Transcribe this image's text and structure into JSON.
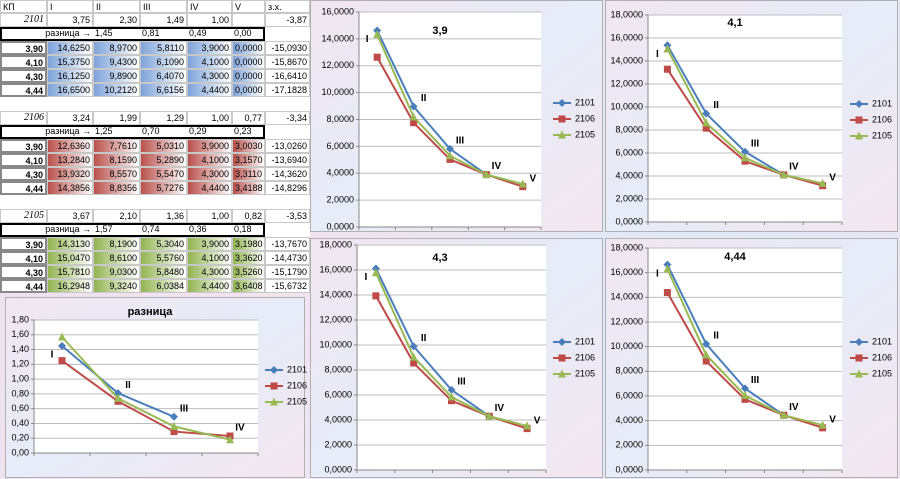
{
  "table": {
    "header": [
      "КП",
      "I",
      "II",
      "III",
      "IV",
      "V",
      "з.х."
    ],
    "blocks": [
      {
        "rows": [
          [
            "2101",
            "3,75",
            "2,30",
            "1,49",
            "1,00",
            null,
            "-3,87"
          ],
          [
            "разница →",
            "1,45",
            "0,81",
            "0,49",
            "0,00"
          ],
          [
            "3,90",
            "14,6250",
            "8,9700",
            "5,8110",
            "3,9000",
            "0,0000",
            "-15,0930"
          ],
          [
            "4,10",
            "15,3750",
            "9,4300",
            "6,1090",
            "4,1000",
            "0,0000",
            "-15,8670"
          ],
          [
            "4,30",
            "16,1250",
            "9,8900",
            "6,4070",
            "4,3000",
            "0,0000",
            "-16,6410"
          ],
          [
            "4,44",
            "16,6500",
            "10,2120",
            "6,6156",
            "4,4400",
            "0,0000",
            "-17,1828"
          ]
        ]
      },
      {
        "rows": [
          [
            "2106",
            "3,24",
            "1,99",
            "1,29",
            "1,00",
            "0,77",
            "-3,34"
          ],
          [
            "разница →",
            "1,25",
            "0,70",
            "0,29",
            "0,23"
          ],
          [
            "3,90",
            "12,6360",
            "7,7610",
            "5,0310",
            "3,9000",
            "3,0030",
            "-13,0260"
          ],
          [
            "4,10",
            "13,2840",
            "8,1590",
            "5,2890",
            "4,1000",
            "3,1570",
            "-13,6940"
          ],
          [
            "4,30",
            "13,9320",
            "8,5570",
            "5,5470",
            "4,3000",
            "3,3110",
            "-14,3620"
          ],
          [
            "4,44",
            "14,3856",
            "8,8356",
            "5,7276",
            "4,4400",
            "3,4188",
            "-14,8296"
          ]
        ]
      },
      {
        "rows": [
          [
            "2105",
            "3,67",
            "2,10",
            "1,36",
            "1,00",
            "0,82",
            "-3,53"
          ],
          [
            "разница →",
            "1,57",
            "0,74",
            "0,36",
            "0,18"
          ],
          [
            "3,90",
            "14,3130",
            "8,1900",
            "5,3040",
            "3,9000",
            "3,1980",
            "-13,7670"
          ],
          [
            "4,10",
            "15,0470",
            "8,6100",
            "5,5760",
            "4,1000",
            "3,3620",
            "-14,4730"
          ],
          [
            "4,30",
            "15,7810",
            "9,0300",
            "5,8480",
            "4,3000",
            "3,5260",
            "-15,1790"
          ],
          [
            "4,44",
            "16,2948",
            "9,3240",
            "6,0384",
            "4,4400",
            "3,6408",
            "-15,6732"
          ]
        ]
      }
    ]
  },
  "chart_data": [
    {
      "type": "line",
      "title": "3,9",
      "categories": [
        "I",
        "II",
        "III",
        "IV",
        "V"
      ],
      "series": [
        {
          "name": "2101",
          "color": "#4a7ebb",
          "marker": "diamond",
          "values": [
            14.625,
            8.97,
            5.811,
            3.9,
            null
          ]
        },
        {
          "name": "2106",
          "color": "#be4b48",
          "marker": "square",
          "values": [
            12.636,
            7.761,
            5.031,
            3.9,
            3.003
          ]
        },
        {
          "name": "2105",
          "color": "#98b954",
          "marker": "triangle",
          "values": [
            14.313,
            8.19,
            5.304,
            3.9,
            3.198
          ]
        }
      ],
      "ylim": [
        0,
        16
      ],
      "yticks": [
        {
          "value": 0,
          "label": "0,0000"
        },
        {
          "value": 2,
          "label": "2,0000"
        },
        {
          "value": 4,
          "label": "4,0000"
        },
        {
          "value": 6,
          "label": "6,0000"
        },
        {
          "value": 8,
          "label": "8,0000"
        },
        {
          "value": 10,
          "label": "10,0000"
        },
        {
          "value": 12,
          "label": "12,0000"
        },
        {
          "value": 14,
          "label": "14,0000"
        },
        {
          "value": 16,
          "label": "16,0000"
        }
      ],
      "grid": true,
      "legend": "right"
    },
    {
      "type": "line",
      "title": "4,1",
      "categories": [
        "I",
        "II",
        "III",
        "IV",
        "V"
      ],
      "series": [
        {
          "name": "2101",
          "color": "#4a7ebb",
          "marker": "diamond",
          "values": [
            15.375,
            9.43,
            6.109,
            4.1,
            null
          ]
        },
        {
          "name": "2106",
          "color": "#be4b48",
          "marker": "square",
          "values": [
            13.284,
            8.159,
            5.289,
            4.1,
            3.157
          ]
        },
        {
          "name": "2105",
          "color": "#98b954",
          "marker": "triangle",
          "values": [
            15.047,
            8.61,
            5.576,
            4.1,
            3.362
          ]
        }
      ],
      "ylim": [
        0,
        18
      ],
      "yticks": [
        {
          "value": 0,
          "label": "0,0000"
        },
        {
          "value": 2,
          "label": "2,0000"
        },
        {
          "value": 4,
          "label": "4,0000"
        },
        {
          "value": 6,
          "label": "6,0000"
        },
        {
          "value": 8,
          "label": "8,0000"
        },
        {
          "value": 10,
          "label": "10,0000"
        },
        {
          "value": 12,
          "label": "12,0000"
        },
        {
          "value": 14,
          "label": "14,0000"
        },
        {
          "value": 16,
          "label": "16,0000"
        },
        {
          "value": 18,
          "label": "18,0000"
        }
      ],
      "grid": true,
      "legend": "right"
    },
    {
      "type": "line",
      "title": "4,3",
      "categories": [
        "I",
        "II",
        "III",
        "IV",
        "V"
      ],
      "series": [
        {
          "name": "2101",
          "color": "#4a7ebb",
          "marker": "diamond",
          "values": [
            16.125,
            9.89,
            6.407,
            4.3,
            null
          ]
        },
        {
          "name": "2106",
          "color": "#be4b48",
          "marker": "square",
          "values": [
            13.932,
            8.557,
            5.547,
            4.3,
            3.311
          ]
        },
        {
          "name": "2105",
          "color": "#98b954",
          "marker": "triangle",
          "values": [
            15.781,
            9.03,
            5.848,
            4.3,
            3.526
          ]
        }
      ],
      "ylim": [
        0,
        18
      ],
      "yticks": [
        {
          "value": 0,
          "label": "0,0000"
        },
        {
          "value": 2,
          "label": "2,0000"
        },
        {
          "value": 4,
          "label": "4,0000"
        },
        {
          "value": 6,
          "label": "6,0000"
        },
        {
          "value": 8,
          "label": "8,0000"
        },
        {
          "value": 10,
          "label": "10,0000"
        },
        {
          "value": 12,
          "label": "12,0000"
        },
        {
          "value": 14,
          "label": "14,0000"
        },
        {
          "value": 16,
          "label": "16,0000"
        },
        {
          "value": 18,
          "label": "18,0000"
        }
      ],
      "grid": true,
      "legend": "right"
    },
    {
      "type": "line",
      "title": "4,44",
      "categories": [
        "I",
        "II",
        "III",
        "IV",
        "V"
      ],
      "series": [
        {
          "name": "2101",
          "color": "#4a7ebb",
          "marker": "diamond",
          "values": [
            16.65,
            10.212,
            6.6156,
            4.44,
            null
          ]
        },
        {
          "name": "2106",
          "color": "#be4b48",
          "marker": "square",
          "values": [
            14.3856,
            8.8356,
            5.7276,
            4.44,
            3.4188
          ]
        },
        {
          "name": "2105",
          "color": "#98b954",
          "marker": "triangle",
          "values": [
            16.2948,
            9.324,
            6.0384,
            4.44,
            3.6408
          ]
        }
      ],
      "ylim": [
        0,
        18
      ],
      "yticks": [
        {
          "value": 0,
          "label": "0,0000"
        },
        {
          "value": 2,
          "label": "2,0000"
        },
        {
          "value": 4,
          "label": "4,0000"
        },
        {
          "value": 6,
          "label": "6,0000"
        },
        {
          "value": 8,
          "label": "8,0000"
        },
        {
          "value": 10,
          "label": "10,0000"
        },
        {
          "value": 12,
          "label": "12,0000"
        },
        {
          "value": 14,
          "label": "14,0000"
        },
        {
          "value": 16,
          "label": "16,0000"
        },
        {
          "value": 18,
          "label": "18,0000"
        }
      ],
      "grid": true,
      "legend": "right"
    },
    {
      "type": "line",
      "title": "разница",
      "categories": [
        "I",
        "II",
        "III",
        "IV"
      ],
      "series": [
        {
          "name": "2101",
          "color": "#4a7ebb",
          "marker": "diamond",
          "values": [
            1.45,
            0.81,
            0.49,
            null
          ]
        },
        {
          "name": "2106",
          "color": "#be4b48",
          "marker": "square",
          "values": [
            1.25,
            0.7,
            0.29,
            0.23
          ]
        },
        {
          "name": "2105",
          "color": "#98b954",
          "marker": "triangle",
          "values": [
            1.57,
            0.74,
            0.36,
            0.18
          ]
        }
      ],
      "ylim": [
        0,
        1.8
      ],
      "yticks": [
        {
          "value": 0,
          "label": "0,00"
        },
        {
          "value": 0.2,
          "label": "0,20"
        },
        {
          "value": 0.4,
          "label": "0,40"
        },
        {
          "value": 0.6,
          "label": "0,60"
        },
        {
          "value": 0.8,
          "label": "0,80"
        },
        {
          "value": 1,
          "label": "1,00"
        },
        {
          "value": 1.2,
          "label": "1,20"
        },
        {
          "value": 1.4,
          "label": "1,40"
        },
        {
          "value": 1.6,
          "label": "1,60"
        },
        {
          "value": 1.8,
          "label": "1,80"
        }
      ],
      "grid": true,
      "legend": "right"
    }
  ]
}
